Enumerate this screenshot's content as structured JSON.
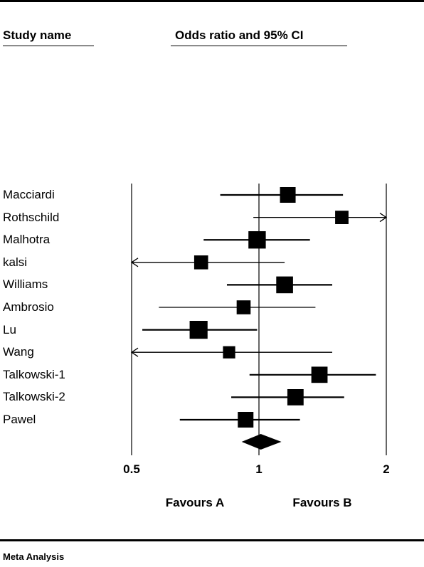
{
  "header": {
    "study_col": "Study name",
    "effect_col": "Odds ratio and 95% CI"
  },
  "footer": {
    "label": "Meta Analysis"
  },
  "chart_data": {
    "type": "forest",
    "scale": "log",
    "xlim": [
      0.5,
      2
    ],
    "xticks": [
      0.5,
      1,
      2
    ],
    "tick_labels": [
      "0.5",
      "1",
      "2"
    ],
    "favours_left": "Favours A",
    "favours_right": "Favours B",
    "studies": [
      {
        "name": "Macciardi",
        "or": 1.17,
        "lower": 0.81,
        "upper": 1.58,
        "weight": 0.75
      },
      {
        "name": "Rothschild",
        "or": 1.57,
        "lower": 0.97,
        "upper": 2.0,
        "weight": 0.55,
        "upper_arrow": true
      },
      {
        "name": "Malhotra",
        "or": 0.99,
        "lower": 0.74,
        "upper": 1.32,
        "weight": 0.9
      },
      {
        "name": "kalsi",
        "or": 0.73,
        "lower": 0.5,
        "upper": 1.15,
        "weight": 0.6,
        "lower_arrow": true
      },
      {
        "name": "Williams",
        "or": 1.15,
        "lower": 0.84,
        "upper": 1.49,
        "weight": 0.85
      },
      {
        "name": "Ambrosio",
        "or": 0.92,
        "lower": 0.58,
        "upper": 1.36,
        "weight": 0.6
      },
      {
        "name": "Lu",
        "or": 0.72,
        "lower": 0.53,
        "upper": 0.99,
        "weight": 0.95
      },
      {
        "name": "Wang",
        "or": 0.85,
        "lower": 0.5,
        "upper": 1.49,
        "weight": 0.45,
        "lower_arrow": true
      },
      {
        "name": "Talkowski-1",
        "or": 1.39,
        "lower": 0.95,
        "upper": 1.89,
        "weight": 0.8
      },
      {
        "name": "Talkowski-2",
        "or": 1.22,
        "lower": 0.86,
        "upper": 1.59,
        "weight": 0.8
      },
      {
        "name": "Pawel",
        "or": 0.93,
        "lower": 0.65,
        "upper": 1.25,
        "weight": 0.75
      }
    ],
    "summary": {
      "or": 1.01,
      "lower": 0.91,
      "upper": 1.13
    }
  }
}
